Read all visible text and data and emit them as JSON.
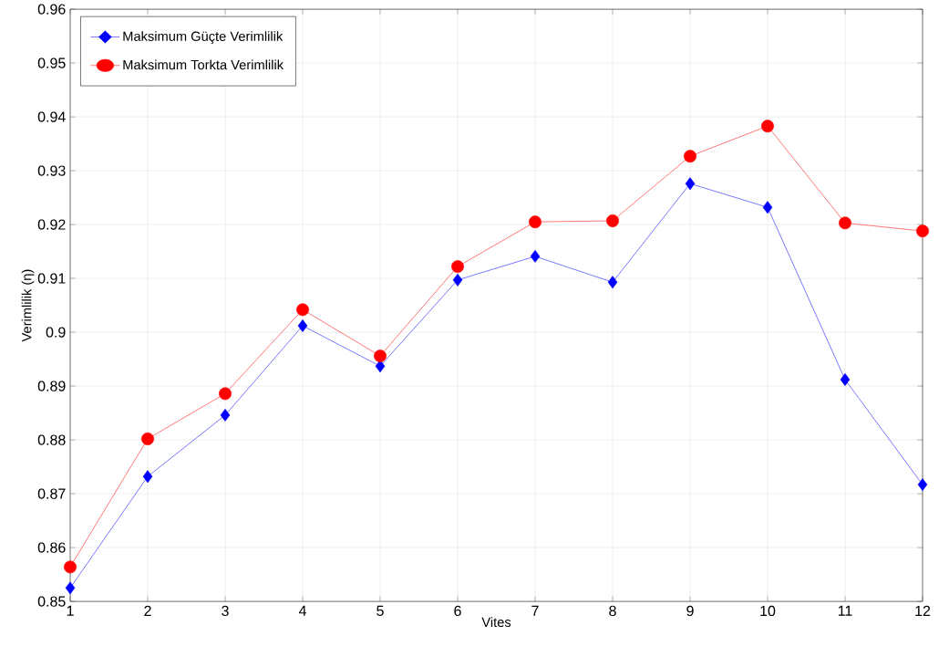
{
  "chart_data": {
    "type": "line",
    "xlabel": "Vites",
    "ylabel": "Verimlilik (η)",
    "x": [
      1,
      2,
      3,
      4,
      5,
      6,
      7,
      8,
      9,
      10,
      11,
      12
    ],
    "series": [
      {
        "name": "Maksimum Güçte Verimlilik",
        "color": "#0000ff",
        "marker": "diamond",
        "values": [
          0.8525,
          0.8732,
          0.8846,
          0.9012,
          0.8937,
          0.9097,
          0.9141,
          0.9093,
          0.9276,
          0.9232,
          0.8912,
          0.8717
        ]
      },
      {
        "name": "Maksimum Torkta Verimlilik",
        "color": "#ff0000",
        "marker": "circle",
        "values": [
          0.8564,
          0.8802,
          0.8886,
          0.9042,
          0.8956,
          0.9122,
          0.9205,
          0.9207,
          0.9327,
          0.9383,
          0.9203,
          0.9188
        ]
      }
    ],
    "xlim": [
      1,
      12
    ],
    "xticks": [
      1,
      2,
      3,
      4,
      5,
      6,
      7,
      8,
      9,
      10,
      11,
      12
    ],
    "ylim": [
      0.85,
      0.96
    ],
    "yticks": [
      0.85,
      0.86,
      0.87,
      0.88,
      0.89,
      0.9,
      0.91,
      0.92,
      0.93,
      0.94,
      0.95,
      0.96
    ],
    "grid": true,
    "legend": "top left",
    "line_style": "solid"
  }
}
